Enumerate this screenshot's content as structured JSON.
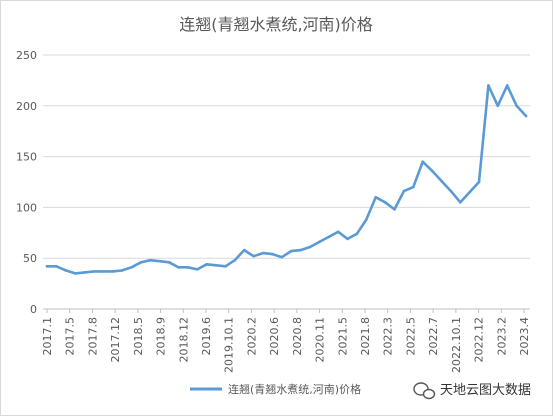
{
  "chart_data": {
    "type": "line",
    "title": "连翘(青翘水煮统,河南)价格",
    "xlabel": "",
    "ylabel": "",
    "ylim": [
      0,
      250
    ],
    "yticks": [
      0,
      50,
      100,
      150,
      200,
      250
    ],
    "grid": "horizontal",
    "legend_position": "bottom",
    "color": "#5b9bd5",
    "x_tick_labels": [
      "2017.1",
      "2017.5",
      "2017.8",
      "2017.12",
      "2018.5",
      "2018.9",
      "2018.12",
      "2019.6",
      "2019.10.1",
      "2020.2",
      "2020.6",
      "2020.8",
      "2020.11",
      "2021.5",
      "2021.8",
      "2022.3",
      "2022.5",
      "2022.7",
      "2022.10.1",
      "2022.12",
      "2023.2",
      "2023.4"
    ],
    "series": [
      {
        "name": "连翘(青翘水煮统,河南)价格",
        "values": [
          42,
          42,
          38,
          35,
          36,
          37,
          37,
          37,
          38,
          41,
          46,
          48,
          47,
          46,
          41,
          41,
          39,
          44,
          43,
          42,
          48,
          58,
          52,
          55,
          54,
          51,
          57,
          58,
          61,
          66,
          71,
          76,
          69,
          74,
          88,
          110,
          105,
          98,
          116,
          120,
          145,
          136,
          126,
          116,
          105,
          115,
          125,
          220,
          200,
          220,
          200,
          190
        ]
      }
    ]
  },
  "watermark": {
    "text": "天地云图大数据",
    "icon": "wechat-icon"
  }
}
